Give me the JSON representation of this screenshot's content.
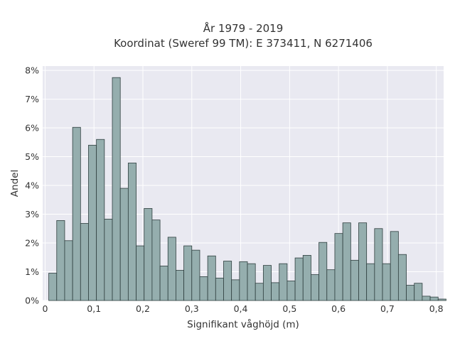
{
  "chart_data": {
    "type": "bar",
    "title_lines": [
      "År 1979 - 2019",
      "Koordinat (Sweref 99 TM): E 373411, N 6271406"
    ],
    "xlabel": "Signifikant våghöjd (m)",
    "ylabel": "Andel",
    "x_tick_values": [
      0,
      0.1,
      0.2,
      0.3,
      0.4,
      0.5,
      0.6,
      0.7,
      0.8
    ],
    "x_tick_labels": [
      "0",
      "0,1",
      "0,2",
      "0,3",
      "0,4",
      "0,5",
      "0,6",
      "0,7",
      "0,8"
    ],
    "y_tick_values": [
      0,
      1,
      2,
      3,
      4,
      5,
      6,
      7,
      8
    ],
    "y_tick_labels": [
      "0%",
      "1%",
      "2%",
      "3%",
      "4%",
      "5%",
      "6%",
      "7%",
      "8%"
    ],
    "xlim": [
      -0.005,
      0.815
    ],
    "ylim": [
      0,
      8.15
    ],
    "grid": true,
    "bin_width": 0.01625,
    "bin_start": 0.0075,
    "values": [
      0.95,
      2.78,
      2.08,
      6.02,
      2.68,
      5.4,
      5.6,
      2.83,
      7.75,
      3.9,
      4.78,
      1.9,
      3.2,
      2.8,
      1.2,
      2.2,
      1.05,
      1.9,
      1.75,
      0.83,
      1.55,
      0.78,
      1.37,
      0.72,
      1.35,
      1.28,
      0.6,
      1.22,
      0.62,
      1.28,
      0.68,
      1.48,
      1.57,
      0.9,
      2.02,
      1.07,
      2.33,
      2.7,
      1.4,
      2.7,
      1.28,
      2.5,
      1.28,
      2.4,
      1.6,
      0.53,
      0.6,
      0.15,
      0.12,
      0.05
    ],
    "colors": {
      "bar_fill": "#95aeae",
      "bar_stroke": "#2f3f3f",
      "plot_background": "#e9e9f1",
      "grid": "#ffffff"
    }
  }
}
